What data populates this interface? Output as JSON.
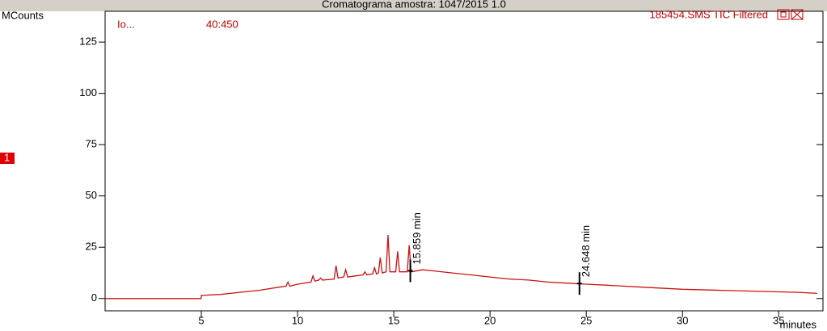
{
  "chart_data": {
    "type": "line",
    "title": "Cromatograma amostra: 1047/2015 1.0",
    "y_label": "MCounts",
    "x_label": "minutes",
    "ion_label": "Io...",
    "mass_range": "40:450",
    "file_label": "185454.SMS TIC Filtered",
    "marker_label": "1",
    "xlim": [
      0,
      37.3
    ],
    "ylim": [
      -6,
      140
    ],
    "xticks": [
      5,
      10,
      15,
      20,
      25,
      30,
      35
    ],
    "yticks": [
      0,
      25,
      50,
      75,
      100,
      125
    ],
    "series": [
      {
        "color": "#cc1111",
        "x": [
          0,
          4.99,
          5,
          6,
          7,
          8,
          9,
          9.4,
          9.5,
          9.6,
          10,
          10.7,
          10.8,
          10.9,
          11.1,
          11.2,
          11.3,
          11.9,
          12.0,
          12.1,
          12.4,
          12.5,
          12.6,
          13,
          13.4,
          13.5,
          13.6,
          13.9,
          14.0,
          14.1,
          14.2,
          14.3,
          14.4,
          14.6,
          14.7,
          14.8,
          15.1,
          15.2,
          15.3,
          15.7,
          15.8,
          15.9,
          16.5,
          17,
          18,
          19,
          20,
          21,
          22,
          23,
          24,
          25,
          26,
          28,
          30,
          32,
          34,
          36,
          37
        ],
        "values": [
          0,
          0,
          1.5,
          2,
          3,
          4,
          5.5,
          6,
          8,
          6,
          7,
          8,
          11,
          8.5,
          9,
          10,
          9,
          9.5,
          16,
          10,
          10.5,
          14,
          10.5,
          11,
          11.5,
          13,
          11.5,
          12,
          15,
          12,
          12.5,
          20,
          12.5,
          13,
          31,
          13,
          13,
          23,
          13,
          13,
          26,
          13,
          14,
          13.5,
          12.5,
          11.5,
          10.5,
          9.5,
          9,
          8,
          7.5,
          7,
          6.5,
          5.5,
          4.5,
          4,
          3.5,
          3,
          2.5
        ]
      }
    ],
    "annotations": [
      {
        "x": 15.859,
        "y": 13.5,
        "label": "15.859 min"
      },
      {
        "x": 24.648,
        "y": 7.3,
        "label": "24.648 min"
      }
    ]
  }
}
